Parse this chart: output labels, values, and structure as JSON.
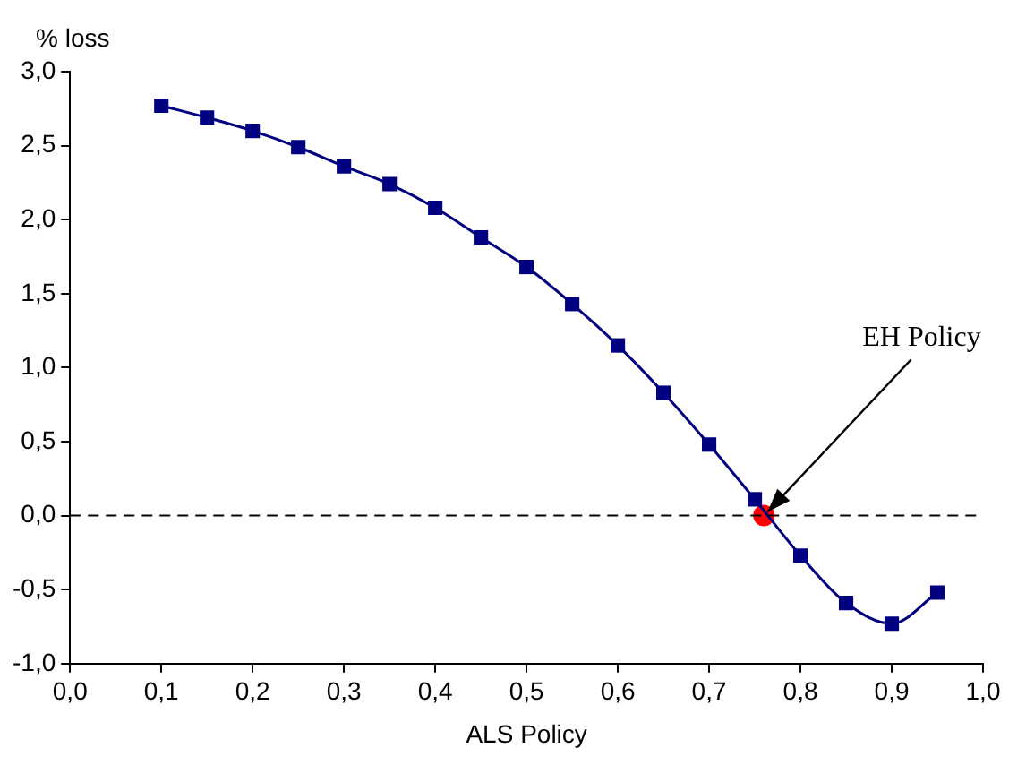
{
  "chart_data": {
    "type": "line",
    "xlabel": "ALS Policy",
    "ylabel": "% loss",
    "x": [
      0.1,
      0.15,
      0.2,
      0.25,
      0.3,
      0.35,
      0.4,
      0.45,
      0.5,
      0.55,
      0.6,
      0.65,
      0.7,
      0.75,
      0.8,
      0.85,
      0.9,
      0.95
    ],
    "series": [
      {
        "color": "#000080",
        "values": [
          2.77,
          2.69,
          2.6,
          2.49,
          2.36,
          2.24,
          2.08,
          1.88,
          1.68,
          1.43,
          1.15,
          0.83,
          0.48,
          0.11,
          -0.27,
          -0.59,
          -0.73,
          -0.52
        ],
        "marker": "square"
      },
      {
        "type": "scatter",
        "color": "#ff0000",
        "x": [
          0.76
        ],
        "values": [
          0.0
        ],
        "marker": "circle"
      }
    ],
    "xlim": [
      0,
      1
    ],
    "ylim": [
      -1,
      3
    ],
    "xticks": [
      {
        "value": 0,
        "label": "0,0"
      },
      {
        "value": 0.1,
        "label": "0,1"
      },
      {
        "value": 0.2,
        "label": "0,2"
      },
      {
        "value": 0.3,
        "label": "0,3"
      },
      {
        "value": 0.4,
        "label": "0,4"
      },
      {
        "value": 0.5,
        "label": "0,5"
      },
      {
        "value": 0.6,
        "label": "0,6"
      },
      {
        "value": 0.7,
        "label": "0,7"
      },
      {
        "value": 0.8,
        "label": "0,8"
      },
      {
        "value": 0.9,
        "label": "0,9"
      },
      {
        "value": 1,
        "label": "1,0"
      }
    ],
    "yticks": [
      {
        "value": -1,
        "label": "-1,0"
      },
      {
        "value": -0.5,
        "label": "-0,5"
      },
      {
        "value": 0,
        "label": "0,0"
      },
      {
        "value": 0.5,
        "label": "0,5"
      },
      {
        "value": 1,
        "label": "1,0"
      },
      {
        "value": 1.5,
        "label": "1,5"
      },
      {
        "value": 2,
        "label": "2,0"
      },
      {
        "value": 2.5,
        "label": "2,5"
      },
      {
        "value": 3,
        "label": "3,0"
      }
    ],
    "ref_lines": [
      {
        "axis": "y",
        "value": 0,
        "line_style": "dashed",
        "color": "#000000"
      }
    ],
    "annotations": [
      {
        "text": "EH Policy",
        "x": 0.76,
        "y": 0.0
      }
    ],
    "grid": false,
    "legend": false
  }
}
